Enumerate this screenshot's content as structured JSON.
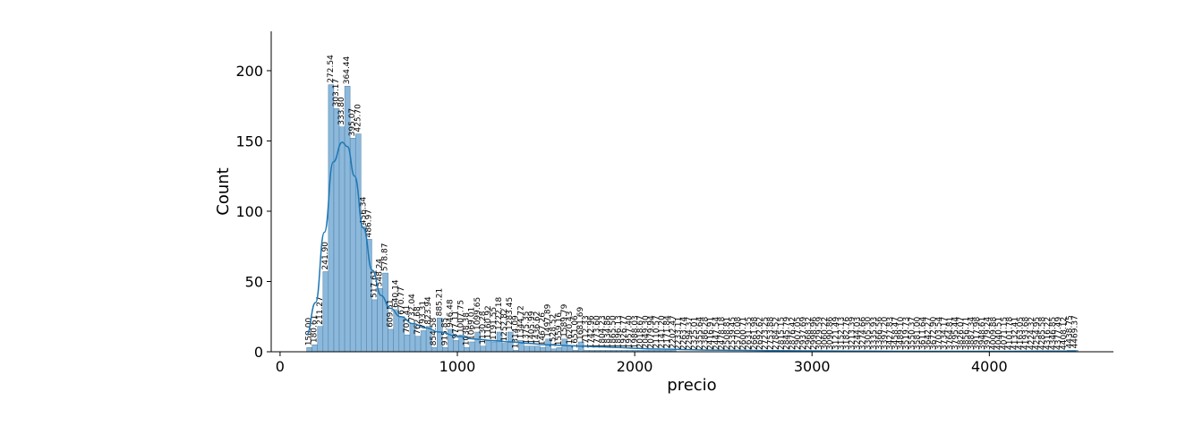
{
  "chart_data": {
    "type": "bar",
    "xlabel": "precio",
    "ylabel": "Count",
    "xlim": [
      -50,
      4700
    ],
    "ylim": [
      0,
      228
    ],
    "x_ticks": [
      "0",
      "1000",
      "2000",
      "3000",
      "4000"
    ],
    "y_ticks": [
      "0",
      "50",
      "100",
      "150",
      "200"
    ],
    "bin_width": 30.45,
    "bins": [
      {
        "x": 150.0,
        "count": 3,
        "label": "150.00"
      },
      {
        "x": 180.6,
        "count": 5,
        "label": "180.61"
      },
      {
        "x": 211.3,
        "count": 18,
        "label": "211.27"
      },
      {
        "x": 241.9,
        "count": 57,
        "label": "241.90"
      },
      {
        "x": 272.5,
        "count": 190,
        "label": "272.54"
      },
      {
        "x": 303.2,
        "count": 173,
        "label": "303.17"
      },
      {
        "x": 333.8,
        "count": 160,
        "label": "333.80"
      },
      {
        "x": 364.4,
        "count": 189,
        "label": "364.44"
      },
      {
        "x": 395.1,
        "count": 152,
        "label": "395.07"
      },
      {
        "x": 425.7,
        "count": 155,
        "label": "425.70"
      },
      {
        "x": 456.3,
        "count": 89,
        "label": "456.34"
      },
      {
        "x": 487.0,
        "count": 80,
        "label": "486.97"
      },
      {
        "x": 517.6,
        "count": 37,
        "label": "517.61"
      },
      {
        "x": 548.2,
        "count": 45,
        "label": "548.24"
      },
      {
        "x": 578.9,
        "count": 56,
        "label": "578.87"
      },
      {
        "x": 609.5,
        "count": 16,
        "label": "609.51"
      },
      {
        "x": 640.1,
        "count": 30,
        "label": "640.14"
      },
      {
        "x": 670.8,
        "count": 25,
        "label": "670.77"
      },
      {
        "x": 701.4,
        "count": 12,
        "label": "701.41"
      },
      {
        "x": 732.0,
        "count": 20,
        "label": "732.04"
      },
      {
        "x": 762.7,
        "count": 11,
        "label": "762.68"
      },
      {
        "x": 793.3,
        "count": 15,
        "label": "793.31"
      },
      {
        "x": 823.9,
        "count": 18,
        "label": "823.94"
      },
      {
        "x": 854.6,
        "count": 3,
        "label": "854.58"
      },
      {
        "x": 885.2,
        "count": 24,
        "label": "885.21"
      },
      {
        "x": 915.8,
        "count": 3,
        "label": "915.85"
      },
      {
        "x": 946.5,
        "count": 16,
        "label": "946.48"
      },
      {
        "x": 977.1,
        "count": 8,
        "label": "977.11"
      },
      {
        "x": 1007.8,
        "count": 12,
        "label": "1007.75"
      },
      {
        "x": 1038.4,
        "count": 3,
        "label": "1038.38"
      },
      {
        "x": 1069.0,
        "count": 7,
        "label": "1069.01"
      },
      {
        "x": 1099.7,
        "count": 14,
        "label": "1099.65"
      },
      {
        "x": 1130.3,
        "count": 4,
        "label": "1130.28"
      },
      {
        "x": 1160.9,
        "count": 8,
        "label": "1160.92"
      },
      {
        "x": 1191.6,
        "count": 7,
        "label": "1191.55"
      },
      {
        "x": 1222.2,
        "count": 14,
        "label": "1222.18"
      },
      {
        "x": 1252.8,
        "count": 6,
        "label": "1252.82"
      },
      {
        "x": 1283.5,
        "count": 14,
        "label": "1283.45"
      },
      {
        "x": 1314.1,
        "count": 1,
        "label": "1314.09"
      },
      {
        "x": 1344.7,
        "count": 8,
        "label": "1344.72"
      },
      {
        "x": 1375.4,
        "count": 4,
        "label": "1375.35"
      },
      {
        "x": 1406.0,
        "count": 4,
        "label": "1405.99"
      },
      {
        "x": 1436.6,
        "count": 4,
        "label": "1436.62"
      },
      {
        "x": 1467.3,
        "count": 3,
        "label": "1467.26"
      },
      {
        "x": 1497.9,
        "count": 9,
        "label": "1497.89"
      },
      {
        "x": 1528.5,
        "count": 2,
        "label": "1528.52"
      },
      {
        "x": 1559.2,
        "count": 3,
        "label": "1559.16"
      },
      {
        "x": 1589.8,
        "count": 9,
        "label": "1589.79"
      },
      {
        "x": 1620.4,
        "count": 4,
        "label": "1620.43"
      },
      {
        "x": 1651.1,
        "count": 1,
        "label": "1651.06"
      },
      {
        "x": 1681.7,
        "count": 7,
        "label": "1681.69"
      },
      {
        "x": 1712.3,
        "count": 1,
        "label": "1712.33"
      },
      {
        "x": 1743.0,
        "count": 1,
        "label": "1742.96"
      },
      {
        "x": 1773.6,
        "count": 1,
        "label": "1773.60"
      },
      {
        "x": 1804.2,
        "count": 1,
        "label": "1804.23"
      },
      {
        "x": 1834.9,
        "count": 1,
        "label": "1834.86"
      },
      {
        "x": 1865.5,
        "count": 1,
        "label": "1865.50"
      },
      {
        "x": 1896.1,
        "count": 1,
        "label": "1896.13"
      },
      {
        "x": 1926.8,
        "count": 1,
        "label": "1926.77"
      },
      {
        "x": 1957.4,
        "count": 1,
        "label": "1957.40"
      },
      {
        "x": 1988.0,
        "count": 1,
        "label": "1988.03"
      },
      {
        "x": 2018.7,
        "count": 1,
        "label": "2018.67"
      },
      {
        "x": 2049.3,
        "count": 1,
        "label": "2049.30"
      },
      {
        "x": 2079.9,
        "count": 1,
        "label": "2079.94"
      },
      {
        "x": 2110.6,
        "count": 1,
        "label": "2110.57"
      },
      {
        "x": 2141.2,
        "count": 1,
        "label": "2141.20"
      },
      {
        "x": 2171.8,
        "count": 1,
        "label": "2171.84"
      },
      {
        "x": 2202.5,
        "count": 1,
        "label": "2202.47"
      },
      {
        "x": 2233.1,
        "count": 0,
        "label": "2233.11"
      },
      {
        "x": 2263.7,
        "count": 0,
        "label": "2263.74"
      },
      {
        "x": 2294.4,
        "count": 0,
        "label": "2294.37"
      },
      {
        "x": 2325.0,
        "count": 0,
        "label": "2325.01"
      },
      {
        "x": 2355.6,
        "count": 0,
        "label": "2355.64"
      },
      {
        "x": 2386.3,
        "count": 0,
        "label": "2386.28"
      },
      {
        "x": 2416.9,
        "count": 0,
        "label": "2416.91"
      },
      {
        "x": 2447.5,
        "count": 0,
        "label": "2447.54"
      },
      {
        "x": 2478.2,
        "count": 0,
        "label": "2478.18"
      },
      {
        "x": 2508.8,
        "count": 0,
        "label": "2508.81"
      },
      {
        "x": 2539.4,
        "count": 0,
        "label": "2539.45"
      },
      {
        "x": 2570.1,
        "count": 0,
        "label": "2570.08"
      },
      {
        "x": 2600.7,
        "count": 0,
        "label": "2600.71"
      },
      {
        "x": 2631.4,
        "count": 0,
        "label": "2631.35"
      },
      {
        "x": 2662.0,
        "count": 0,
        "label": "2661.98"
      },
      {
        "x": 2692.6,
        "count": 0,
        "label": "2692.62"
      },
      {
        "x": 2723.3,
        "count": 0,
        "label": "2723.25"
      },
      {
        "x": 2753.9,
        "count": 0,
        "label": "2753.88"
      },
      {
        "x": 2784.5,
        "count": 0,
        "label": "2784.52"
      },
      {
        "x": 2815.2,
        "count": 0,
        "label": "2815.15"
      },
      {
        "x": 2845.8,
        "count": 0,
        "label": "2845.79"
      },
      {
        "x": 2876.4,
        "count": 0,
        "label": "2876.42"
      },
      {
        "x": 2907.1,
        "count": 0,
        "label": "2907.05"
      },
      {
        "x": 2937.7,
        "count": 0,
        "label": "2937.69"
      },
      {
        "x": 2968.3,
        "count": 0,
        "label": "2968.32"
      },
      {
        "x": 2999.0,
        "count": 0,
        "label": "2998.96"
      },
      {
        "x": 3029.6,
        "count": 0,
        "label": "3029.59"
      },
      {
        "x": 3060.2,
        "count": 0,
        "label": "3060.22"
      },
      {
        "x": 3090.9,
        "count": 0,
        "label": "3090.86"
      },
      {
        "x": 3121.5,
        "count": 0,
        "label": "3121.49"
      },
      {
        "x": 3152.1,
        "count": 0,
        "label": "3152.13"
      },
      {
        "x": 3182.8,
        "count": 0,
        "label": "3182.76"
      },
      {
        "x": 3213.4,
        "count": 0,
        "label": "3213.39"
      },
      {
        "x": 3244.0,
        "count": 0,
        "label": "3244.03"
      },
      {
        "x": 3274.7,
        "count": 0,
        "label": "3274.66"
      },
      {
        "x": 3305.3,
        "count": 0,
        "label": "3305.30"
      },
      {
        "x": 3335.9,
        "count": 0,
        "label": "3335.93"
      },
      {
        "x": 3366.6,
        "count": 0,
        "label": "3366.56"
      },
      {
        "x": 3397.2,
        "count": 0,
        "label": "3397.20"
      },
      {
        "x": 3427.8,
        "count": 0,
        "label": "3427.83"
      },
      {
        "x": 3458.5,
        "count": 0,
        "label": "3458.47"
      },
      {
        "x": 3489.1,
        "count": 0,
        "label": "3489.10"
      },
      {
        "x": 3519.7,
        "count": 0,
        "label": "3519.73"
      },
      {
        "x": 3550.4,
        "count": 0,
        "label": "3550.37"
      },
      {
        "x": 3581.0,
        "count": 0,
        "label": "3581.00"
      },
      {
        "x": 3611.6,
        "count": 0,
        "label": "3611.64"
      },
      {
        "x": 3642.3,
        "count": 0,
        "label": "3642.27"
      },
      {
        "x": 3672.9,
        "count": 0,
        "label": "3672.90"
      },
      {
        "x": 3703.5,
        "count": 0,
        "label": "3703.54"
      },
      {
        "x": 3734.2,
        "count": 0,
        "label": "3734.17"
      },
      {
        "x": 3764.8,
        "count": 0,
        "label": "3764.81"
      },
      {
        "x": 3795.4,
        "count": 0,
        "label": "3795.44"
      },
      {
        "x": 3826.1,
        "count": 0,
        "label": "3826.07"
      },
      {
        "x": 3856.7,
        "count": 0,
        "label": "3856.71"
      },
      {
        "x": 3887.3,
        "count": 0,
        "label": "3887.34"
      },
      {
        "x": 3918.0,
        "count": 0,
        "label": "3917.98"
      },
      {
        "x": 3948.6,
        "count": 0,
        "label": "3948.61"
      },
      {
        "x": 3979.2,
        "count": 0,
        "label": "3979.24"
      },
      {
        "x": 4009.9,
        "count": 0,
        "label": "4009.88"
      },
      {
        "x": 4040.5,
        "count": 0,
        "label": "4040.51"
      },
      {
        "x": 4071.1,
        "count": 0,
        "label": "4071.15"
      },
      {
        "x": 4101.8,
        "count": 0,
        "label": "4101.78"
      },
      {
        "x": 4132.4,
        "count": 0,
        "label": "4132.41"
      },
      {
        "x": 4163.0,
        "count": 0,
        "label": "4163.05"
      },
      {
        "x": 4193.7,
        "count": 0,
        "label": "4193.68"
      },
      {
        "x": 4224.3,
        "count": 0,
        "label": "4224.32"
      },
      {
        "x": 4254.9,
        "count": 0,
        "label": "4254.95"
      },
      {
        "x": 4285.6,
        "count": 0,
        "label": "4285.58"
      },
      {
        "x": 4316.2,
        "count": 0,
        "label": "4316.22"
      },
      {
        "x": 4346.9,
        "count": 0,
        "label": "4346.85"
      },
      {
        "x": 4377.5,
        "count": 0,
        "label": "4377.49"
      },
      {
        "x": 4408.1,
        "count": 0,
        "label": "4408.12"
      },
      {
        "x": 4438.8,
        "count": 1,
        "label": "4438.75"
      },
      {
        "x": 4469.4,
        "count": 1,
        "label": "4469.37"
      }
    ],
    "kde": {
      "x": [
        150,
        200,
        250,
        300,
        350,
        380,
        420,
        470,
        520,
        570,
        620,
        680,
        750,
        820,
        900,
        1000,
        1100,
        1200,
        1300,
        1400,
        1500,
        1600,
        1700,
        1800,
        1900,
        2000,
        2100,
        2200,
        2300,
        2400,
        2600,
        2800,
        3000,
        3200,
        3400,
        3600,
        3800,
        4000,
        4200,
        4400,
        4490
      ],
      "y": [
        12,
        35,
        85,
        135,
        149,
        146,
        125,
        88,
        58,
        40,
        31,
        25,
        20,
        17,
        14,
        11,
        9,
        8,
        7,
        6,
        5,
        4.5,
        4,
        3.5,
        3,
        2.5,
        2,
        1.8,
        1.5,
        1.2,
        1,
        0.8,
        0.6,
        0.5,
        0.4,
        0.3,
        0.3,
        0.3,
        0.4,
        0.5,
        0.5
      ]
    },
    "bar_color": "#8bb8db",
    "bar_edge": "#4d7fa6",
    "kde_color": "#1f77b4",
    "grid": false,
    "legend": "none"
  }
}
